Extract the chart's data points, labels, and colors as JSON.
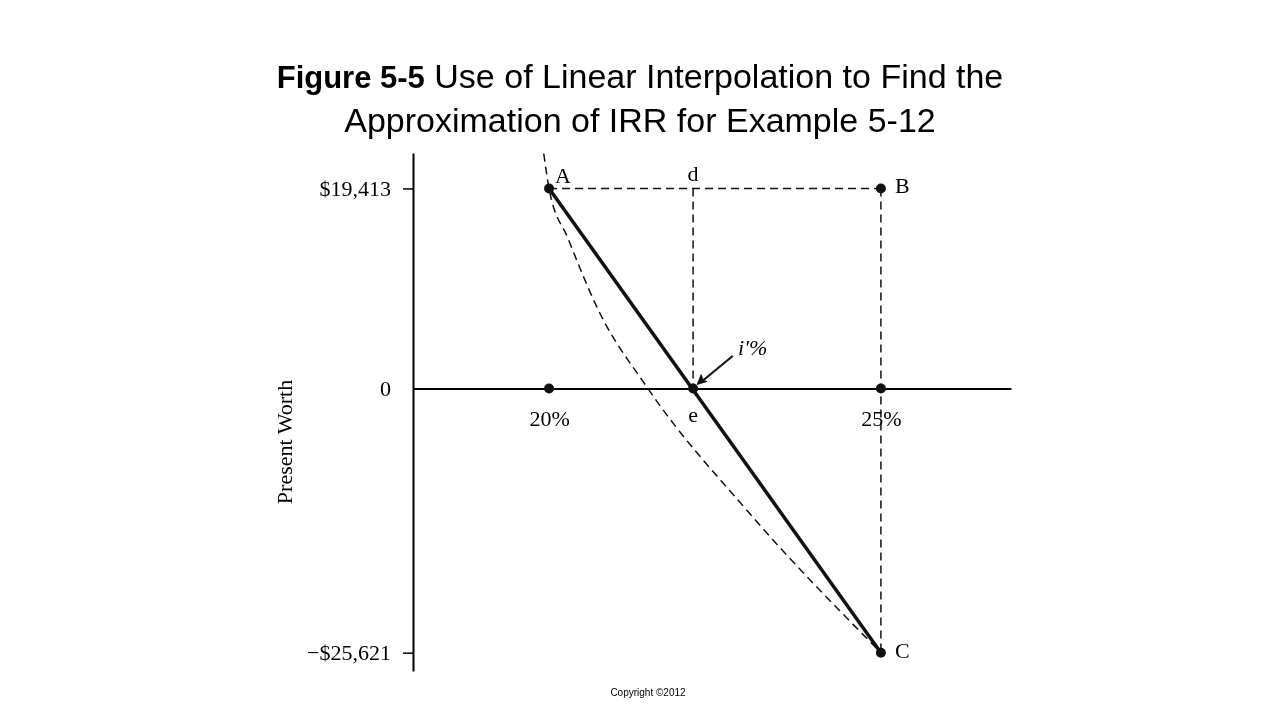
{
  "chart_data": {
    "type": "line",
    "title": "Figure 5-5   Use of Linear Interpolation to Find the Approximation of IRR for Example 5-12",
    "ylabel": "Present Worth",
    "xlim": [
      17.95,
      26.96
    ],
    "ylim": [
      -27400,
      22850
    ],
    "xticks": [
      {
        "value": 20,
        "label": "20%"
      },
      {
        "value": 25,
        "label": "25%"
      }
    ],
    "yticks": [
      {
        "value": 19413,
        "label": "$19,413"
      },
      0,
      {
        "value": -25621,
        "label": "−$25,621"
      }
    ],
    "series": [
      {
        "type": "line",
        "color": "#111111",
        "line_style": "dashed",
        "x": [
          19.92,
          20,
          20.29,
          20.74,
          21.49,
          23.0,
          25
        ],
        "values": [
          22800,
          19413,
          14500,
          7650,
          0,
          -11960,
          -25621
        ]
      },
      {
        "type": "line",
        "color": "#111111",
        "line_style": "dashed",
        "x": [
          20,
          25
        ],
        "values": [
          19413,
          19413
        ]
      },
      {
        "type": "line",
        "color": "#111111",
        "line_style": "dashed",
        "x": [
          22.17,
          22.17
        ],
        "values": [
          19413,
          0
        ]
      },
      {
        "type": "line",
        "color": "#111111",
        "line_style": "dashed",
        "x": [
          25,
          25
        ],
        "values": [
          19413,
          -25621
        ]
      },
      {
        "type": "line",
        "color": "#111111",
        "line_style": "solid",
        "x": [
          20,
          25
        ],
        "values": [
          19413,
          -25621
        ]
      },
      {
        "type": "scatter",
        "color": "#111111",
        "marker": "circle",
        "x": [
          20,
          25,
          25,
          20,
          22.17,
          25
        ],
        "values": [
          19413,
          19413,
          -25621,
          0,
          0,
          0
        ]
      }
    ],
    "annotations": [
      {
        "text": "A",
        "x": 20,
        "y": 19413
      },
      {
        "text": "B",
        "x": 25,
        "y": 19413
      },
      {
        "text": "C",
        "x": 25,
        "y": -25621
      },
      {
        "text": "d",
        "x": 22.17,
        "y": 19413
      },
      {
        "text": "e",
        "x": 22.17,
        "y": 0
      },
      {
        "text": "i′%",
        "x": 22.17,
        "y": 0
      },
      "Copyright ©2012"
    ]
  }
}
